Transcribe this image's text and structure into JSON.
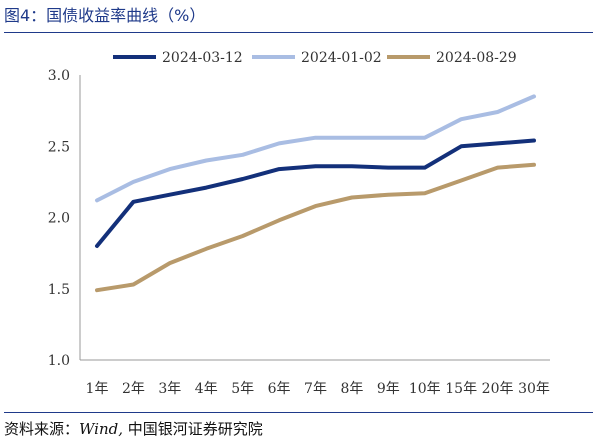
{
  "header": {
    "title": "图4：国债收益率曲线（%）"
  },
  "footer": {
    "source_prefix": "资料来源：",
    "source_brand": "Wind,",
    "source_org": "中国银河证券研究院"
  },
  "colors": {
    "title": "#1f3a8a",
    "s1": "#13307a",
    "s2": "#a9bde3",
    "s3": "#b89a6b",
    "axis": "#999999"
  },
  "chart_data": {
    "type": "line",
    "title": "图4：国债收益率曲线（%）",
    "xlabel": "",
    "ylabel": "",
    "categories": [
      "1年",
      "2年",
      "3年",
      "4年",
      "5年",
      "6年",
      "7年",
      "8年",
      "9年",
      "10年",
      "15年",
      "20年",
      "30年"
    ],
    "ylim": [
      1.0,
      3.0
    ],
    "yticks": [
      "1.0",
      "1.5",
      "2.0",
      "2.5",
      "3.0"
    ],
    "grid": false,
    "legend": "top",
    "series": [
      {
        "name": "2024-03-12",
        "color": "#13307a",
        "values": [
          1.8,
          2.11,
          2.16,
          2.21,
          2.27,
          2.34,
          2.36,
          2.36,
          2.35,
          2.35,
          2.5,
          2.52,
          2.54
        ]
      },
      {
        "name": "2024-01-02",
        "color": "#a9bde3",
        "values": [
          2.12,
          2.25,
          2.34,
          2.4,
          2.44,
          2.52,
          2.56,
          2.56,
          2.56,
          2.56,
          2.69,
          2.74,
          2.85
        ]
      },
      {
        "name": "2024-08-29",
        "color": "#b89a6b",
        "values": [
          1.49,
          1.53,
          1.68,
          1.78,
          1.87,
          1.98,
          2.08,
          2.14,
          2.16,
          2.17,
          2.26,
          2.35,
          2.37
        ]
      }
    ]
  }
}
